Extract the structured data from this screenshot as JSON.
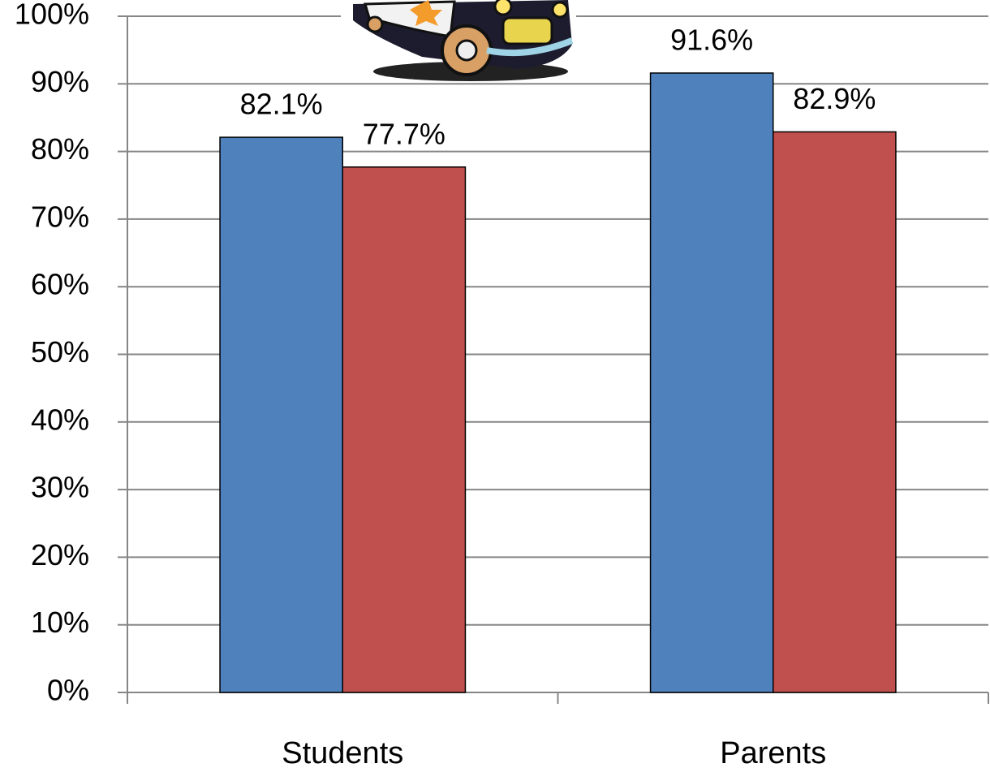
{
  "chart_data": {
    "type": "bar",
    "categories": [
      "Students",
      "Parents"
    ],
    "series": [
      {
        "color": "#4f81bd",
        "values": [
          82.1,
          91.6
        ],
        "value_labels": [
          "82.1%",
          "91.6%"
        ]
      },
      {
        "color": "#c0504d",
        "values": [
          77.7,
          82.9
        ],
        "value_labels": [
          "77.7%",
          "82.9%"
        ]
      }
    ],
    "ylim": [
      0,
      100
    ],
    "yticks": [
      {
        "value": 0,
        "label": "0%"
      },
      {
        "value": 10,
        "label": "10%"
      },
      {
        "value": 20,
        "label": "20%"
      },
      {
        "value": 30,
        "label": "30%"
      },
      {
        "value": 40,
        "label": "40%"
      },
      {
        "value": 50,
        "label": "50%"
      },
      {
        "value": 60,
        "label": "60%"
      },
      {
        "value": 70,
        "label": "70%"
      },
      {
        "value": 80,
        "label": "80%"
      },
      {
        "value": 90,
        "label": "90%"
      },
      {
        "value": 100,
        "label": "100%"
      }
    ],
    "grid": true
  }
}
